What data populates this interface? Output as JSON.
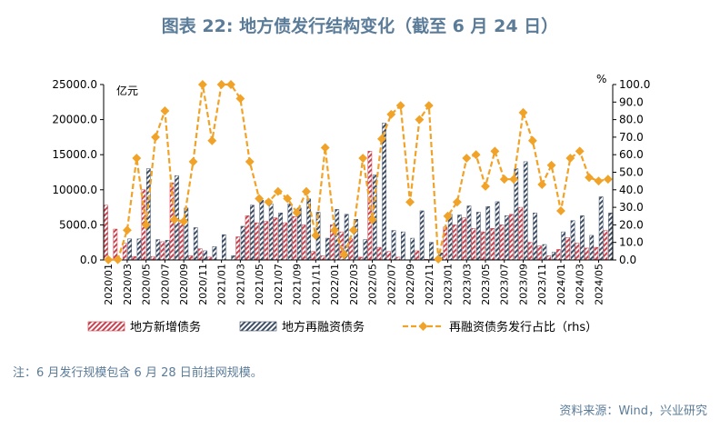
{
  "header": {
    "title": "图表 22: 地方债发行结构变化（截至 6 月 24 日）"
  },
  "footer": {
    "note": "注：6 月发行规模包含 6 月 28 日前挂网规模。",
    "source": "资料来源：Wind，兴业研究"
  },
  "colors": {
    "new_debt": "#c8434f",
    "refinancing_debt": "#3f4f66",
    "ratio_line": "#f0a328",
    "axis": "#000000"
  },
  "chart_data": {
    "type": "bar",
    "title": "图表 22: 地方债发行结构变化（截至 6 月 24 日）",
    "y_left_unit": "亿元",
    "y_right_unit": "%",
    "ylim_left": [
      0,
      25000
    ],
    "ylim_right": [
      0,
      100
    ],
    "yticks_left": [
      "0.0",
      "5000.0",
      "10000.0",
      "15000.0",
      "20000.0",
      "25000.0"
    ],
    "yticks_right": [
      "0.0",
      "10.0",
      "20.0",
      "30.0",
      "40.0",
      "50.0",
      "60.0",
      "70.0",
      "80.0",
      "90.0",
      "100.0"
    ],
    "categories": [
      "2020/01",
      "2020/02",
      "2020/03",
      "2020/04",
      "2020/05",
      "2020/06",
      "2020/07",
      "2020/08",
      "2020/09",
      "2020/10",
      "2020/11",
      "2020/12",
      "2021/01",
      "2021/02",
      "2021/03",
      "2021/04",
      "2021/05",
      "2021/06",
      "2021/07",
      "2021/08",
      "2021/09",
      "2021/10",
      "2021/11",
      "2021/12",
      "2022/01",
      "2022/02",
      "2022/03",
      "2022/04",
      "2022/05",
      "2022/06",
      "2022/07",
      "2022/08",
      "2022/09",
      "2022/10",
      "2022/11",
      "2022/12",
      "2023/01",
      "2023/02",
      "2023/03",
      "2023/04",
      "2023/05",
      "2023/06",
      "2023/07",
      "2023/08",
      "2023/09",
      "2023/10",
      "2023/11",
      "2023/12",
      "2024/01",
      "2024/02",
      "2024/03",
      "2024/04",
      "2024/05",
      "2024/06"
    ],
    "xtick_labels": [
      "2020/01",
      "2020/03",
      "2020/05",
      "2020/07",
      "2020/09",
      "2020/11",
      "2021/01",
      "2021/03",
      "2021/05",
      "2021/07",
      "2021/09",
      "2021/11",
      "2022/01",
      "2022/03",
      "2022/05",
      "2022/07",
      "2022/09",
      "2022/11",
      "2023/01",
      "2023/03",
      "2023/05",
      "2023/07",
      "2023/09",
      "2023/11",
      "2024/01",
      "2024/03",
      "2024/05"
    ],
    "legend_position": "bottom",
    "series": [
      {
        "name": "地方新增债务",
        "type": "bar",
        "axis": "left",
        "values": [
          7800,
          4400,
          2400,
          500,
          10000,
          500,
          2600,
          11000,
          5300,
          600,
          1600,
          400,
          0,
          0,
          3300,
          6300,
          5300,
          5500,
          6000,
          5300,
          6200,
          5000,
          1200,
          600,
          5000,
          4000,
          3000,
          400,
          15500,
          1800,
          1200,
          400,
          0,
          1300,
          100,
          100,
          4700,
          5000,
          6000,
          4500,
          4000,
          4500,
          5000,
          6500,
          7500,
          2500,
          2000,
          600,
          1500,
          3200,
          2400,
          1700,
          1800,
          4200
        ]
      },
      {
        "name": "地方再融资债务",
        "type": "bar",
        "axis": "left",
        "values": [
          8,
          10,
          3000,
          3000,
          13000,
          2900,
          2800,
          12000,
          7400,
          4600,
          1300,
          1900,
          3600,
          600,
          4800,
          7800,
          8500,
          8000,
          6700,
          8000,
          7400,
          8700,
          6800,
          3100,
          7200,
          6500,
          5800,
          2900,
          12100,
          19500,
          4200,
          4000,
          3100,
          7000,
          2500,
          1000,
          6500,
          6400,
          7700,
          6800,
          7600,
          8300,
          6300,
          13000,
          14000,
          6700,
          2200,
          1100,
          4000,
          5600,
          6300,
          3500,
          9000,
          6700
        ]
      },
      {
        "name": "再融资债务发行占比（rhs）",
        "type": "line",
        "axis": "right",
        "values": [
          0.1,
          0.2,
          17,
          58,
          20,
          70,
          85,
          23,
          22,
          56,
          100,
          68,
          100,
          100,
          92,
          56,
          35,
          33,
          39,
          35,
          27,
          39,
          14,
          64,
          17,
          3,
          17,
          58,
          23,
          69,
          83,
          88,
          33,
          80,
          88,
          0.5,
          25,
          33,
          58,
          60,
          42,
          62,
          46,
          46,
          84,
          68,
          43,
          54,
          28,
          58,
          62,
          47,
          45,
          46
        ]
      }
    ]
  }
}
